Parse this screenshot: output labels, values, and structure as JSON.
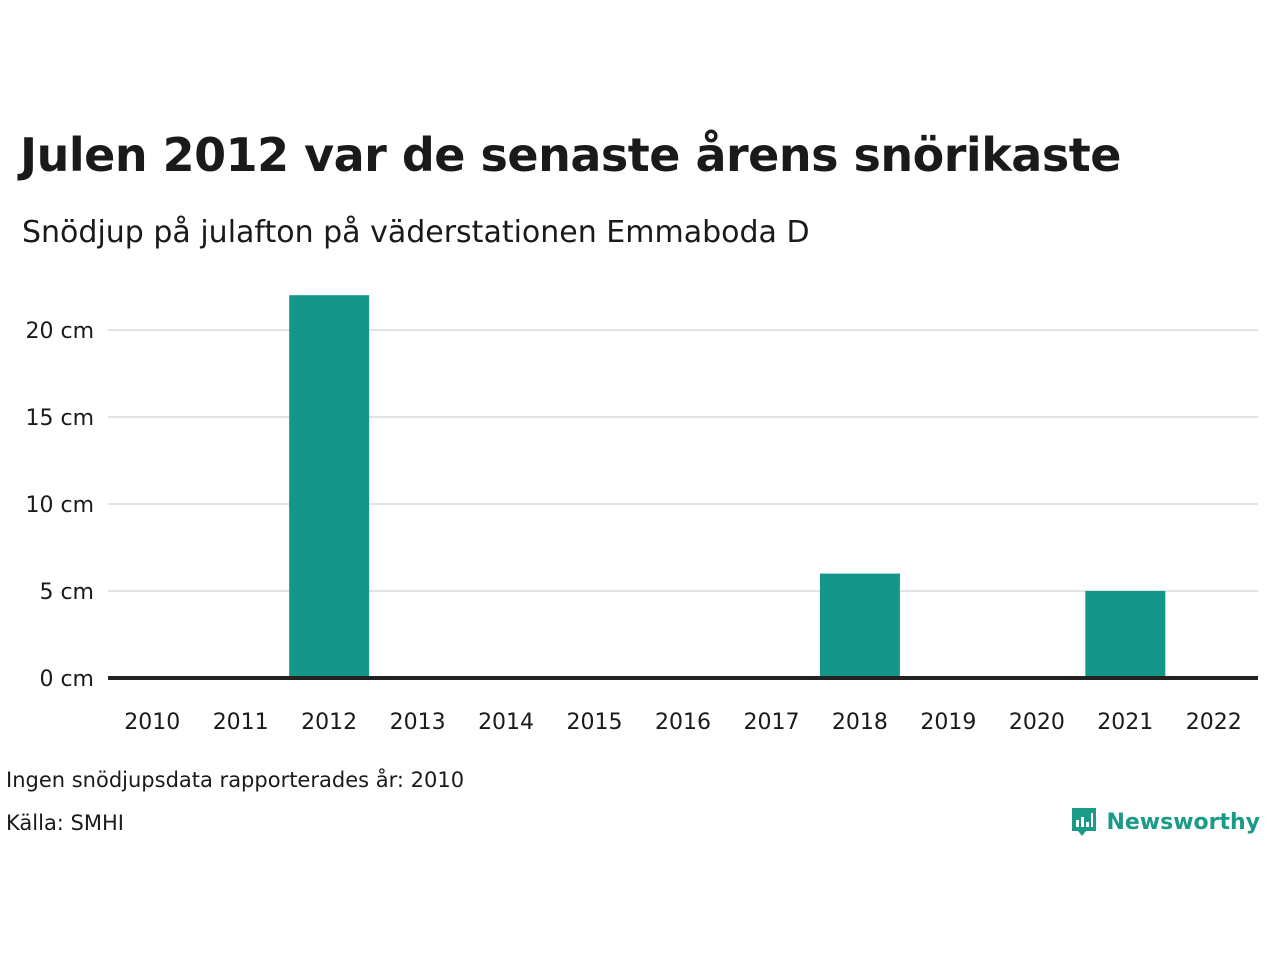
{
  "title": "Julen 2012 var de senaste årens snörikaste",
  "subtitle": "Snödjup på julafton på väderstationen Emmaboda D",
  "notes": {
    "missing": "Ingen snödjupsdata rapporterades år: 2010",
    "source": "Källa: SMHI"
  },
  "logo": {
    "text": "Newsworthy",
    "icon": "newsworthy-bar-chart-icon"
  },
  "colors": {
    "bar": "#149689",
    "grid": "#e3e3e3",
    "baseline": "#222222",
    "brand": "#1b9a88"
  },
  "chart_data": {
    "type": "bar",
    "title": "Julen 2012 var de senaste årens snörikaste",
    "subtitle": "Snödjup på julafton på väderstationen Emmaboda D",
    "xlabel": "",
    "ylabel": "",
    "categories": [
      "2010",
      "2011",
      "2012",
      "2013",
      "2014",
      "2015",
      "2016",
      "2017",
      "2018",
      "2019",
      "2020",
      "2021",
      "2022"
    ],
    "values": [
      null,
      0,
      22,
      0,
      0,
      0,
      0,
      0,
      6,
      0,
      0,
      5,
      0
    ],
    "unit": "cm",
    "yticks": [
      0,
      5,
      10,
      15,
      20
    ],
    "ytick_labels": [
      "0 cm",
      "5 cm",
      "10 cm",
      "15 cm",
      "20 cm"
    ],
    "ylim": [
      0,
      22
    ],
    "grid": true,
    "legend": "none"
  }
}
